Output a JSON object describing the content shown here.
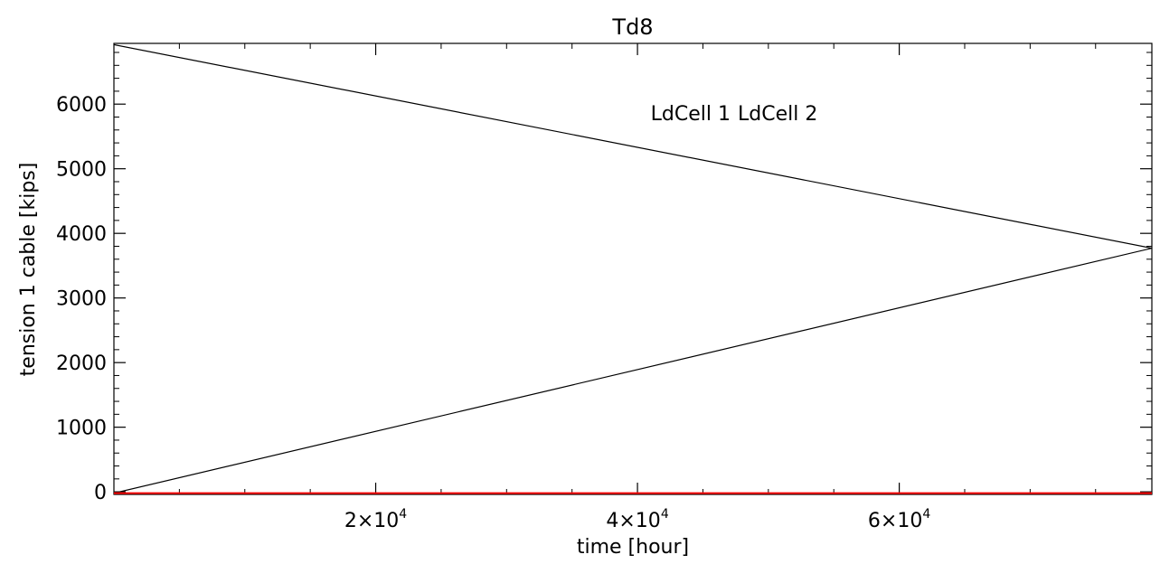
{
  "chart_data": {
    "type": "line",
    "title": "Td8",
    "xlabel": "time [hour]",
    "ylabel": "tension 1 cable [kips]",
    "xlim": [
      0,
      79300
    ],
    "ylim": [
      -40,
      6940
    ],
    "xticks": [
      {
        "value": 20000,
        "base": "2×10",
        "exp": "4"
      },
      {
        "value": 40000,
        "base": "4×10",
        "exp": "4"
      },
      {
        "value": 60000,
        "base": "6×10",
        "exp": "4"
      }
    ],
    "yticks": [
      {
        "value": 0,
        "label": "0"
      },
      {
        "value": 1000,
        "label": "1000"
      },
      {
        "value": 2000,
        "label": "2000"
      },
      {
        "value": 3000,
        "label": "3000"
      },
      {
        "value": 4000,
        "label": "4000"
      },
      {
        "value": 5000,
        "label": "5000"
      },
      {
        "value": 6000,
        "label": "6000"
      }
    ],
    "legend_position": "top-center",
    "series": [
      {
        "name": "LdCell 1",
        "color": "#000000",
        "x": [
          0,
          79300,
          0
        ],
        "y": [
          6920,
          3770,
          -20
        ]
      },
      {
        "name": "LdCell 2",
        "color": "#ff0000",
        "x": [
          0,
          79300
        ],
        "y": [
          -20,
          -20
        ]
      }
    ]
  }
}
